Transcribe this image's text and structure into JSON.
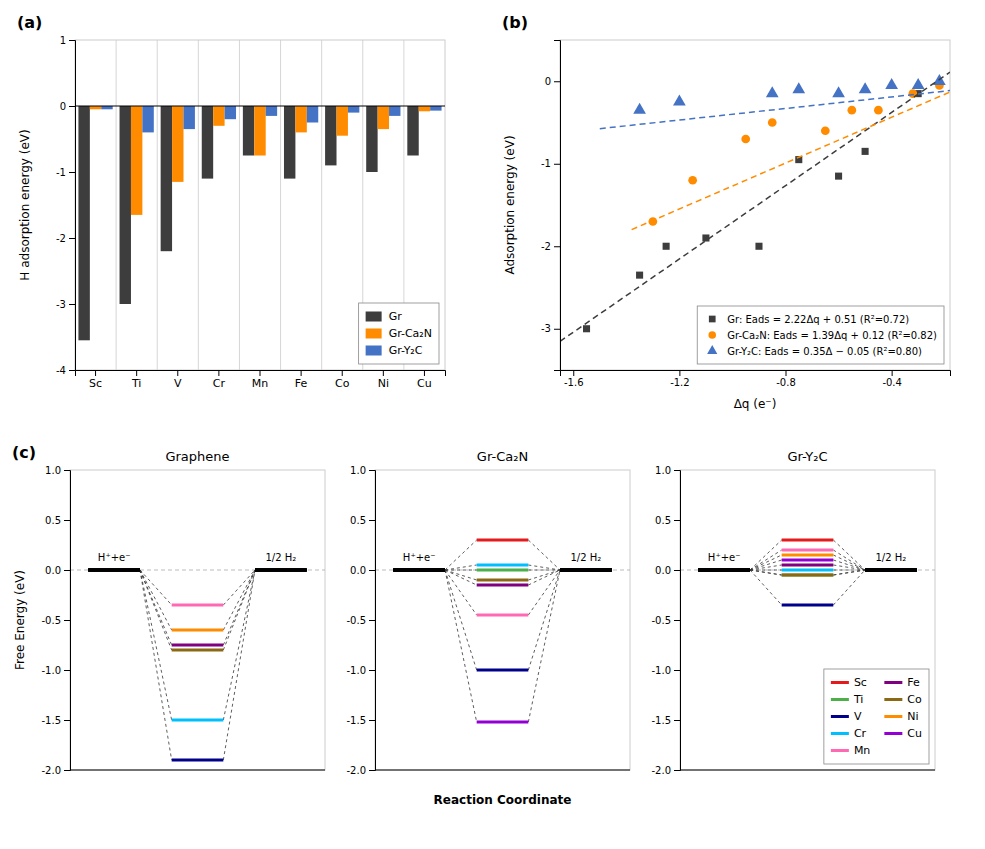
{
  "chart_data": [
    {
      "type": "bar",
      "categories": [
        "Sc",
        "Ti",
        "V",
        "Cr",
        "Mn",
        "Fe",
        "Co",
        "Ni",
        "Cu"
      ],
      "series": [
        {
          "name": "Gr",
          "color": "#3d3d3d",
          "values": [
            -3.55,
            -3.0,
            -2.2,
            -1.1,
            -0.75,
            -1.1,
            -0.9,
            -1.0,
            -0.75
          ]
        },
        {
          "name": "Gr-Ca₂N",
          "color": "#FF8C00",
          "values": [
            -0.05,
            -1.65,
            -1.15,
            -0.3,
            -0.75,
            -0.4,
            -0.45,
            -0.35,
            -0.08
          ]
        },
        {
          "name": "Gr-Y₂C",
          "color": "#4472C4",
          "values": [
            -0.05,
            -0.4,
            -0.35,
            -0.2,
            -0.15,
            -0.25,
            -0.1,
            -0.15,
            -0.07
          ]
        }
      ],
      "ylabel": "H adsorption energy (eV)",
      "ylim": [
        -4,
        1
      ],
      "yticks": [
        -4,
        -3,
        -2,
        -1,
        0,
        1
      ],
      "grid": true,
      "legend": "lower right",
      "annotations": [
        {
          "text": "(a)"
        }
      ]
    },
    {
      "type": "scatter",
      "xlabel": "Δq (e⁻)",
      "ylabel": "Adsorption energy (eV)",
      "xlim": [
        -1.65,
        -0.18
      ],
      "ylim": [
        -3.5,
        0.5
      ],
      "xticks": [
        -1.6,
        -1.2,
        -0.8,
        -0.4
      ],
      "yticks": [
        -3,
        -2,
        -1,
        0
      ],
      "legend": "lower right",
      "series": [
        {
          "name": "Gr: Eads = 2.22Δq + 0.51 (R²=0.72)",
          "color": "#3d3d3d",
          "marker": "square",
          "x": [
            -1.55,
            -1.35,
            -1.25,
            -1.1,
            -0.9,
            -0.75,
            -0.6,
            -0.5,
            -0.3
          ],
          "values": [
            -3.0,
            -2.35,
            -2.0,
            -1.9,
            -2.0,
            -0.95,
            -1.15,
            -0.85,
            -0.15
          ]
        },
        {
          "name": "Gr-Ca₂N: Eads = 1.39Δq + 0.12 (R²=0.82)",
          "color": "#FF8C00",
          "marker": "circle",
          "x": [
            -1.3,
            -1.15,
            -0.95,
            -0.85,
            -0.65,
            -0.55,
            -0.45,
            -0.32,
            -0.22
          ],
          "values": [
            -1.7,
            -1.2,
            -0.7,
            -0.5,
            -0.6,
            -0.35,
            -0.35,
            -0.15,
            -0.05
          ]
        },
        {
          "name": "Gr-Y₂C: Eads = 0.35Δ − 0.05 (R²=0.80)",
          "color": "#4472C4",
          "marker": "triangle",
          "x": [
            -1.35,
            -1.2,
            -0.85,
            -0.75,
            -0.6,
            -0.5,
            -0.4,
            -0.3,
            -0.22
          ],
          "values": [
            -0.35,
            -0.25,
            -0.15,
            -0.1,
            -0.15,
            -0.1,
            -0.05,
            -0.05,
            0.0
          ]
        },
        {
          "type": "line",
          "line_style": "dashed",
          "color": "#3d3d3d",
          "x": [
            -1.65,
            -0.18
          ],
          "values": [
            -3.153,
            0.1104
          ]
        },
        {
          "type": "line",
          "line_style": "dashed",
          "color": "#FF8C00",
          "x": [
            -1.38,
            -0.18
          ],
          "values": [
            -1.7982,
            -0.1302
          ]
        },
        {
          "type": "line",
          "line_style": "dashed",
          "color": "#4472C4",
          "x": [
            -1.5,
            -0.18
          ],
          "values": [
            -0.575,
            -0.113
          ]
        }
      ],
      "annotations": [
        {
          "text": "(b)"
        }
      ]
    },
    {
      "type": "levels",
      "title": "Graphene",
      "ylabel": "Free Energy (eV)",
      "categories": [
        "H⁺+e⁻",
        null,
        "1/2 H₂"
      ],
      "ylim": [
        -2,
        1
      ],
      "yticks": [
        {
          "value": -2,
          "label": "-2.0"
        },
        -1.5,
        {
          "value": -1,
          "label": "-1.0"
        },
        -0.5,
        {
          "value": 0,
          "label": "0.0"
        },
        0.5,
        {
          "value": 1,
          "label": "1.0"
        }
      ],
      "series": [
        {
          "color": "#ff69b4",
          "values": [
            0,
            -0.35,
            0
          ]
        },
        {
          "color": "#FF8C00",
          "values": [
            0,
            -0.6,
            0
          ]
        },
        {
          "color": "#800080",
          "values": [
            0,
            -0.75,
            0
          ]
        },
        {
          "color": "#8B6914",
          "values": [
            0,
            -0.8,
            0
          ]
        },
        {
          "color": "#00BFFF",
          "values": [
            0,
            -1.5,
            0
          ]
        },
        {
          "color": "#00008B",
          "values": [
            0,
            -1.9,
            0
          ]
        }
      ],
      "annotations": [
        {
          "text": "(c)"
        }
      ]
    },
    {
      "type": "levels",
      "title": "Gr-Ca₂N",
      "xlabel": "Reaction Coordinate",
      "categories": [
        "H⁺+e⁻",
        null,
        "1/2 H₂"
      ],
      "ylim": [
        -2,
        1
      ],
      "yticks": [
        {
          "value": -2,
          "label": "-2.0"
        },
        -1.5,
        {
          "value": -1,
          "label": "-1.0"
        },
        -0.5,
        {
          "value": 0,
          "label": "0.0"
        },
        0.5,
        {
          "value": 1,
          "label": "1.0"
        }
      ],
      "series": [
        {
          "color": "#e41a1c",
          "values": [
            0,
            0.3,
            0
          ]
        },
        {
          "color": "#00BFFF",
          "values": [
            0,
            0.05,
            0
          ]
        },
        {
          "color": "#4daf4a",
          "values": [
            0,
            0.0,
            0
          ]
        },
        {
          "color": "#8B6914",
          "values": [
            0,
            -0.1,
            0
          ]
        },
        {
          "color": "#800080",
          "values": [
            0,
            -0.15,
            0
          ]
        },
        {
          "color": "#ff69b4",
          "values": [
            0,
            -0.45,
            0
          ]
        },
        {
          "color": "#00008B",
          "values": [
            0,
            -1.0,
            0
          ]
        },
        {
          "color": "#9400D3",
          "values": [
            0,
            -1.52,
            0
          ]
        }
      ]
    },
    {
      "type": "levels",
      "title": "Gr-Y₂C",
      "categories": [
        "H⁺+e⁻",
        null,
        "1/2 H₂"
      ],
      "ylim": [
        -2,
        1
      ],
      "yticks": [
        {
          "value": -2,
          "label": "-2.0"
        },
        -1.5,
        {
          "value": -1,
          "label": "-1.0"
        },
        -0.5,
        {
          "value": 0,
          "label": "0.0"
        },
        0.5,
        {
          "value": 1,
          "label": "1.0"
        }
      ],
      "legend": "lower right",
      "series": [
        {
          "name": "Sc",
          "color": "#e41a1c",
          "values": [
            0,
            0.3,
            0
          ]
        },
        {
          "name": "Ti",
          "color": "#4daf4a",
          "values": [
            0,
            -0.05,
            0
          ]
        },
        {
          "name": "V",
          "color": "#00008B",
          "values": [
            0,
            -0.35,
            0
          ]
        },
        {
          "name": "Cr",
          "color": "#00BFFF",
          "values": [
            0,
            0.0,
            0
          ]
        },
        {
          "name": "Mn",
          "color": "#ff69b4",
          "values": [
            0,
            0.2,
            0
          ]
        },
        {
          "name": "Fe",
          "color": "#800080",
          "values": [
            0,
            0.05,
            0
          ]
        },
        {
          "name": "Co",
          "color": "#8B6914",
          "values": [
            0,
            -0.05,
            0
          ]
        },
        {
          "name": "Ni",
          "color": "#FF8C00",
          "values": [
            0,
            0.15,
            0
          ]
        },
        {
          "name": "Cu",
          "color": "#9400D3",
          "values": [
            0,
            0.1,
            0
          ]
        }
      ]
    }
  ]
}
